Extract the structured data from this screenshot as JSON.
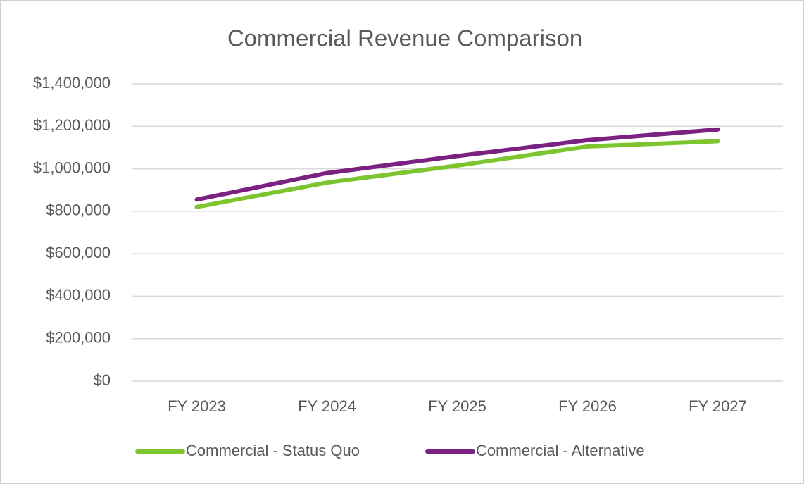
{
  "chart_data": {
    "type": "line",
    "title": "Commercial Revenue Comparison",
    "categories": [
      "FY 2023",
      "FY 2024",
      "FY 2025",
      "FY 2026",
      "FY 2027"
    ],
    "series": [
      {
        "name": "Commercial - Status Quo",
        "color": "#7cc52f",
        "values": [
          820000,
          935000,
          1015000,
          1105000,
          1130000
        ]
      },
      {
        "name": "Commercial - Alternative",
        "color": "#7a2182",
        "values": [
          855000,
          980000,
          1060000,
          1135000,
          1185000
        ]
      }
    ],
    "ylim": [
      0,
      1400000
    ],
    "yticks": [
      {
        "value": 0,
        "label": "$0"
      },
      {
        "value": 200000,
        "label": "$200,000"
      },
      {
        "value": 400000,
        "label": "$400,000"
      },
      {
        "value": 600000,
        "label": "$600,000"
      },
      {
        "value": 800000,
        "label": "$800,000"
      },
      {
        "value": 1000000,
        "label": "$1,000,000"
      },
      {
        "value": 1200000,
        "label": "$1,200,000"
      },
      {
        "value": 1400000,
        "label": "$1,400,000"
      }
    ],
    "grid": true,
    "legend": "bottom"
  }
}
